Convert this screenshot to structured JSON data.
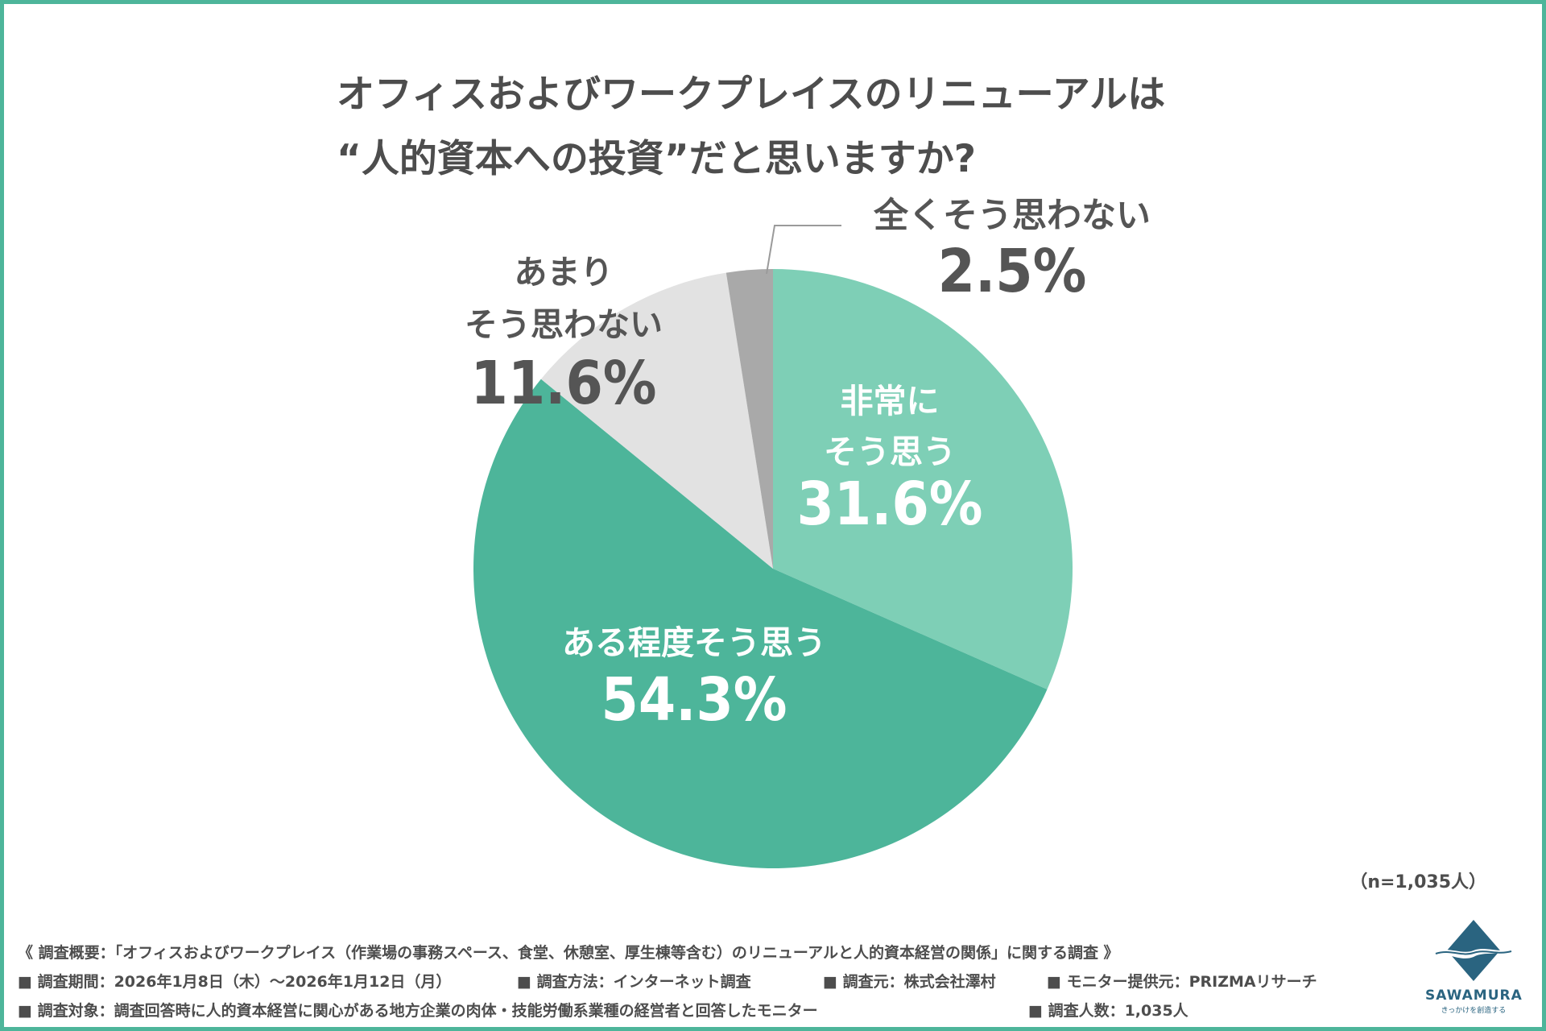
{
  "title": {
    "line1": "オフィスおよびワークプレイスのリニューアルは",
    "line2": "“人的資本への投資”だと思いますか?"
  },
  "chart_data": {
    "type": "pie",
    "start_angle": "12 o'clock",
    "direction": "clockwise",
    "slices": [
      {
        "label_lines": [
          "非常に",
          "そう思う"
        ],
        "value": 31.6,
        "value_text": "31.6%",
        "color": "#7ecfb6",
        "label_color": "#ffffff",
        "label_position": "inside"
      },
      {
        "label_lines": [
          "ある程度そう思う"
        ],
        "value": 54.3,
        "value_text": "54.3%",
        "color": "#4db59a",
        "label_color": "#ffffff",
        "label_position": "inside"
      },
      {
        "label_lines": [
          "あまり",
          "そう思わない"
        ],
        "value": 11.6,
        "value_text": "11.6%",
        "color": "#e2e2e2",
        "label_color": "#555555",
        "label_position": "outside"
      },
      {
        "label_lines": [
          "全くそう思わない"
        ],
        "value": 2.5,
        "value_text": "2.5%",
        "color": "#a9a9a9",
        "label_color": "#555555",
        "label_position": "outside-leader"
      }
    ]
  },
  "sample_size": "（n=1,035人）",
  "survey": {
    "summary": "《 調査概要：「オフィスおよびワークプレイス（作業場の事務スペース、食堂、休憩室、厚生棟等含む）のリニューアルと人的資本経営の関係」に関する調査 》",
    "period": "■ 調査期間：2026年1月8日（木）～2026年1月12日（月）",
    "method": "■ 調査方法：インターネット調査",
    "organizer": "■ 調査元：株式会社澤村",
    "panel": "■ モニター提供元：PRIZMAリサーチ",
    "target": "■ 調査対象：調査回答時に人的資本経営に関心がある地方企業の肉体・技能労働系業種の経営者と回答したモニター",
    "count": "■ 調査人数：1,035人"
  },
  "logo": {
    "name": "SAWAMURA",
    "tagline": "きっかけを創造する"
  },
  "colors": {
    "frame": "#4db59a",
    "title_text": "#4d4d4d",
    "logo": "#2a6480"
  }
}
